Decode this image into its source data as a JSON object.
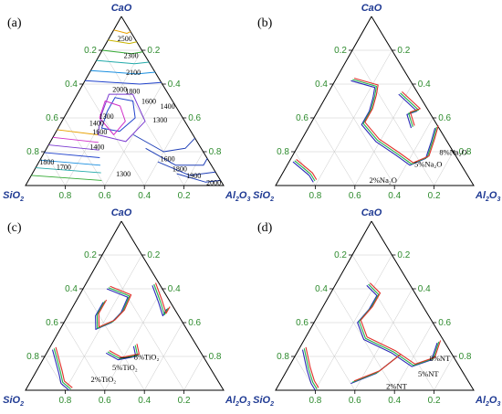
{
  "components": {
    "top": "CaO",
    "left_main": "SiO",
    "left_sub": "2",
    "right_main": "Al",
    "right_sub1": "2",
    "right_main2": "O",
    "right_sub2": "3"
  },
  "tick_values": [
    "0.2",
    "0.4",
    "0.6",
    "0.8"
  ],
  "colors": {
    "frame": "#000000",
    "grid": "#c8c8c8",
    "tick_text": "#2e8b2e",
    "corner_text": "#1f3a93",
    "base": "#2a2ab8",
    "green": "#22b14c",
    "red": "#e0302a"
  },
  "chart_data": [
    {
      "type": "ternary-contour",
      "panel": "(a)",
      "axes": [
        "CaO",
        "SiO2",
        "Al2O3"
      ],
      "isotherm_labels": [
        {
          "text": "2500",
          "c": [
            0.87,
            0.05,
            0.08
          ]
        },
        {
          "text": "2300",
          "c": [
            0.77,
            0.07,
            0.16
          ]
        },
        {
          "text": "2100",
          "c": [
            0.67,
            0.11,
            0.22
          ]
        },
        {
          "text": "2000",
          "c": [
            0.57,
            0.23,
            0.2
          ]
        },
        {
          "text": "1800",
          "c": [
            0.56,
            0.17,
            0.27
          ]
        },
        {
          "text": "1600",
          "c": [
            0.5,
            0.12,
            0.38
          ]
        },
        {
          "text": "1400",
          "c": [
            0.47,
            0.04,
            0.49
          ]
        },
        {
          "text": "1300",
          "c": [
            0.39,
            0.12,
            0.49
          ]
        },
        {
          "text": "1300",
          "c": [
            0.41,
            0.38,
            0.21
          ]
        },
        {
          "text": "1400",
          "c": [
            0.37,
            0.45,
            0.18
          ]
        },
        {
          "text": "1600",
          "c": [
            0.32,
            0.46,
            0.22
          ]
        },
        {
          "text": "1400",
          "c": [
            0.23,
            0.52,
            0.25
          ]
        },
        {
          "text": "1300",
          "c": [
            0.07,
            0.47,
            0.46
          ]
        },
        {
          "text": "1600",
          "c": [
            0.16,
            0.2,
            0.64
          ]
        },
        {
          "text": "1800",
          "c": [
            0.1,
            0.17,
            0.73
          ]
        },
        {
          "text": "1900",
          "c": [
            0.06,
            0.12,
            0.82
          ]
        },
        {
          "text": "2000",
          "c": [
            0.02,
            0.04,
            0.94
          ]
        },
        {
          "text": "1800",
          "c": [
            0.14,
            0.82,
            0.04
          ]
        },
        {
          "text": "1700",
          "c": [
            0.11,
            0.75,
            0.14
          ]
        }
      ],
      "contour_colors": [
        "#e8a000",
        "#c8b400",
        "#33aa33",
        "#22aaaa",
        "#1a8fe0",
        "#2244cc",
        "#7a3ad0",
        "#d030c8"
      ]
    },
    {
      "type": "ternary-liquidus",
      "panel": "(b)",
      "axes": [
        "CaO",
        "SiO2",
        "Al2O3"
      ],
      "series": [
        {
          "name": "2%Na₂O",
          "color": "#2a2ab8"
        },
        {
          "name": "5%Na₂O",
          "color": "#22b14c"
        },
        {
          "name": "8%Na₂O",
          "color": "#e0302a"
        }
      ]
    },
    {
      "type": "ternary-liquidus",
      "panel": "(c)",
      "axes": [
        "CaO",
        "SiO2",
        "Al2O3"
      ],
      "series": [
        {
          "name": "2%TiO₂",
          "color": "#2a2ab8"
        },
        {
          "name": "5%TiO₂",
          "color": "#22b14c"
        },
        {
          "name": "8%TiO₂",
          "color": "#e0302a"
        }
      ]
    },
    {
      "type": "ternary-liquidus",
      "panel": "(d)",
      "axes": [
        "CaO",
        "SiO2",
        "Al2O3"
      ],
      "series": [
        {
          "name": "2%NT",
          "color": "#2a2ab8"
        },
        {
          "name": "5%NT",
          "color": "#22b14c"
        },
        {
          "name": "8%NT",
          "color": "#e0302a"
        }
      ]
    }
  ]
}
